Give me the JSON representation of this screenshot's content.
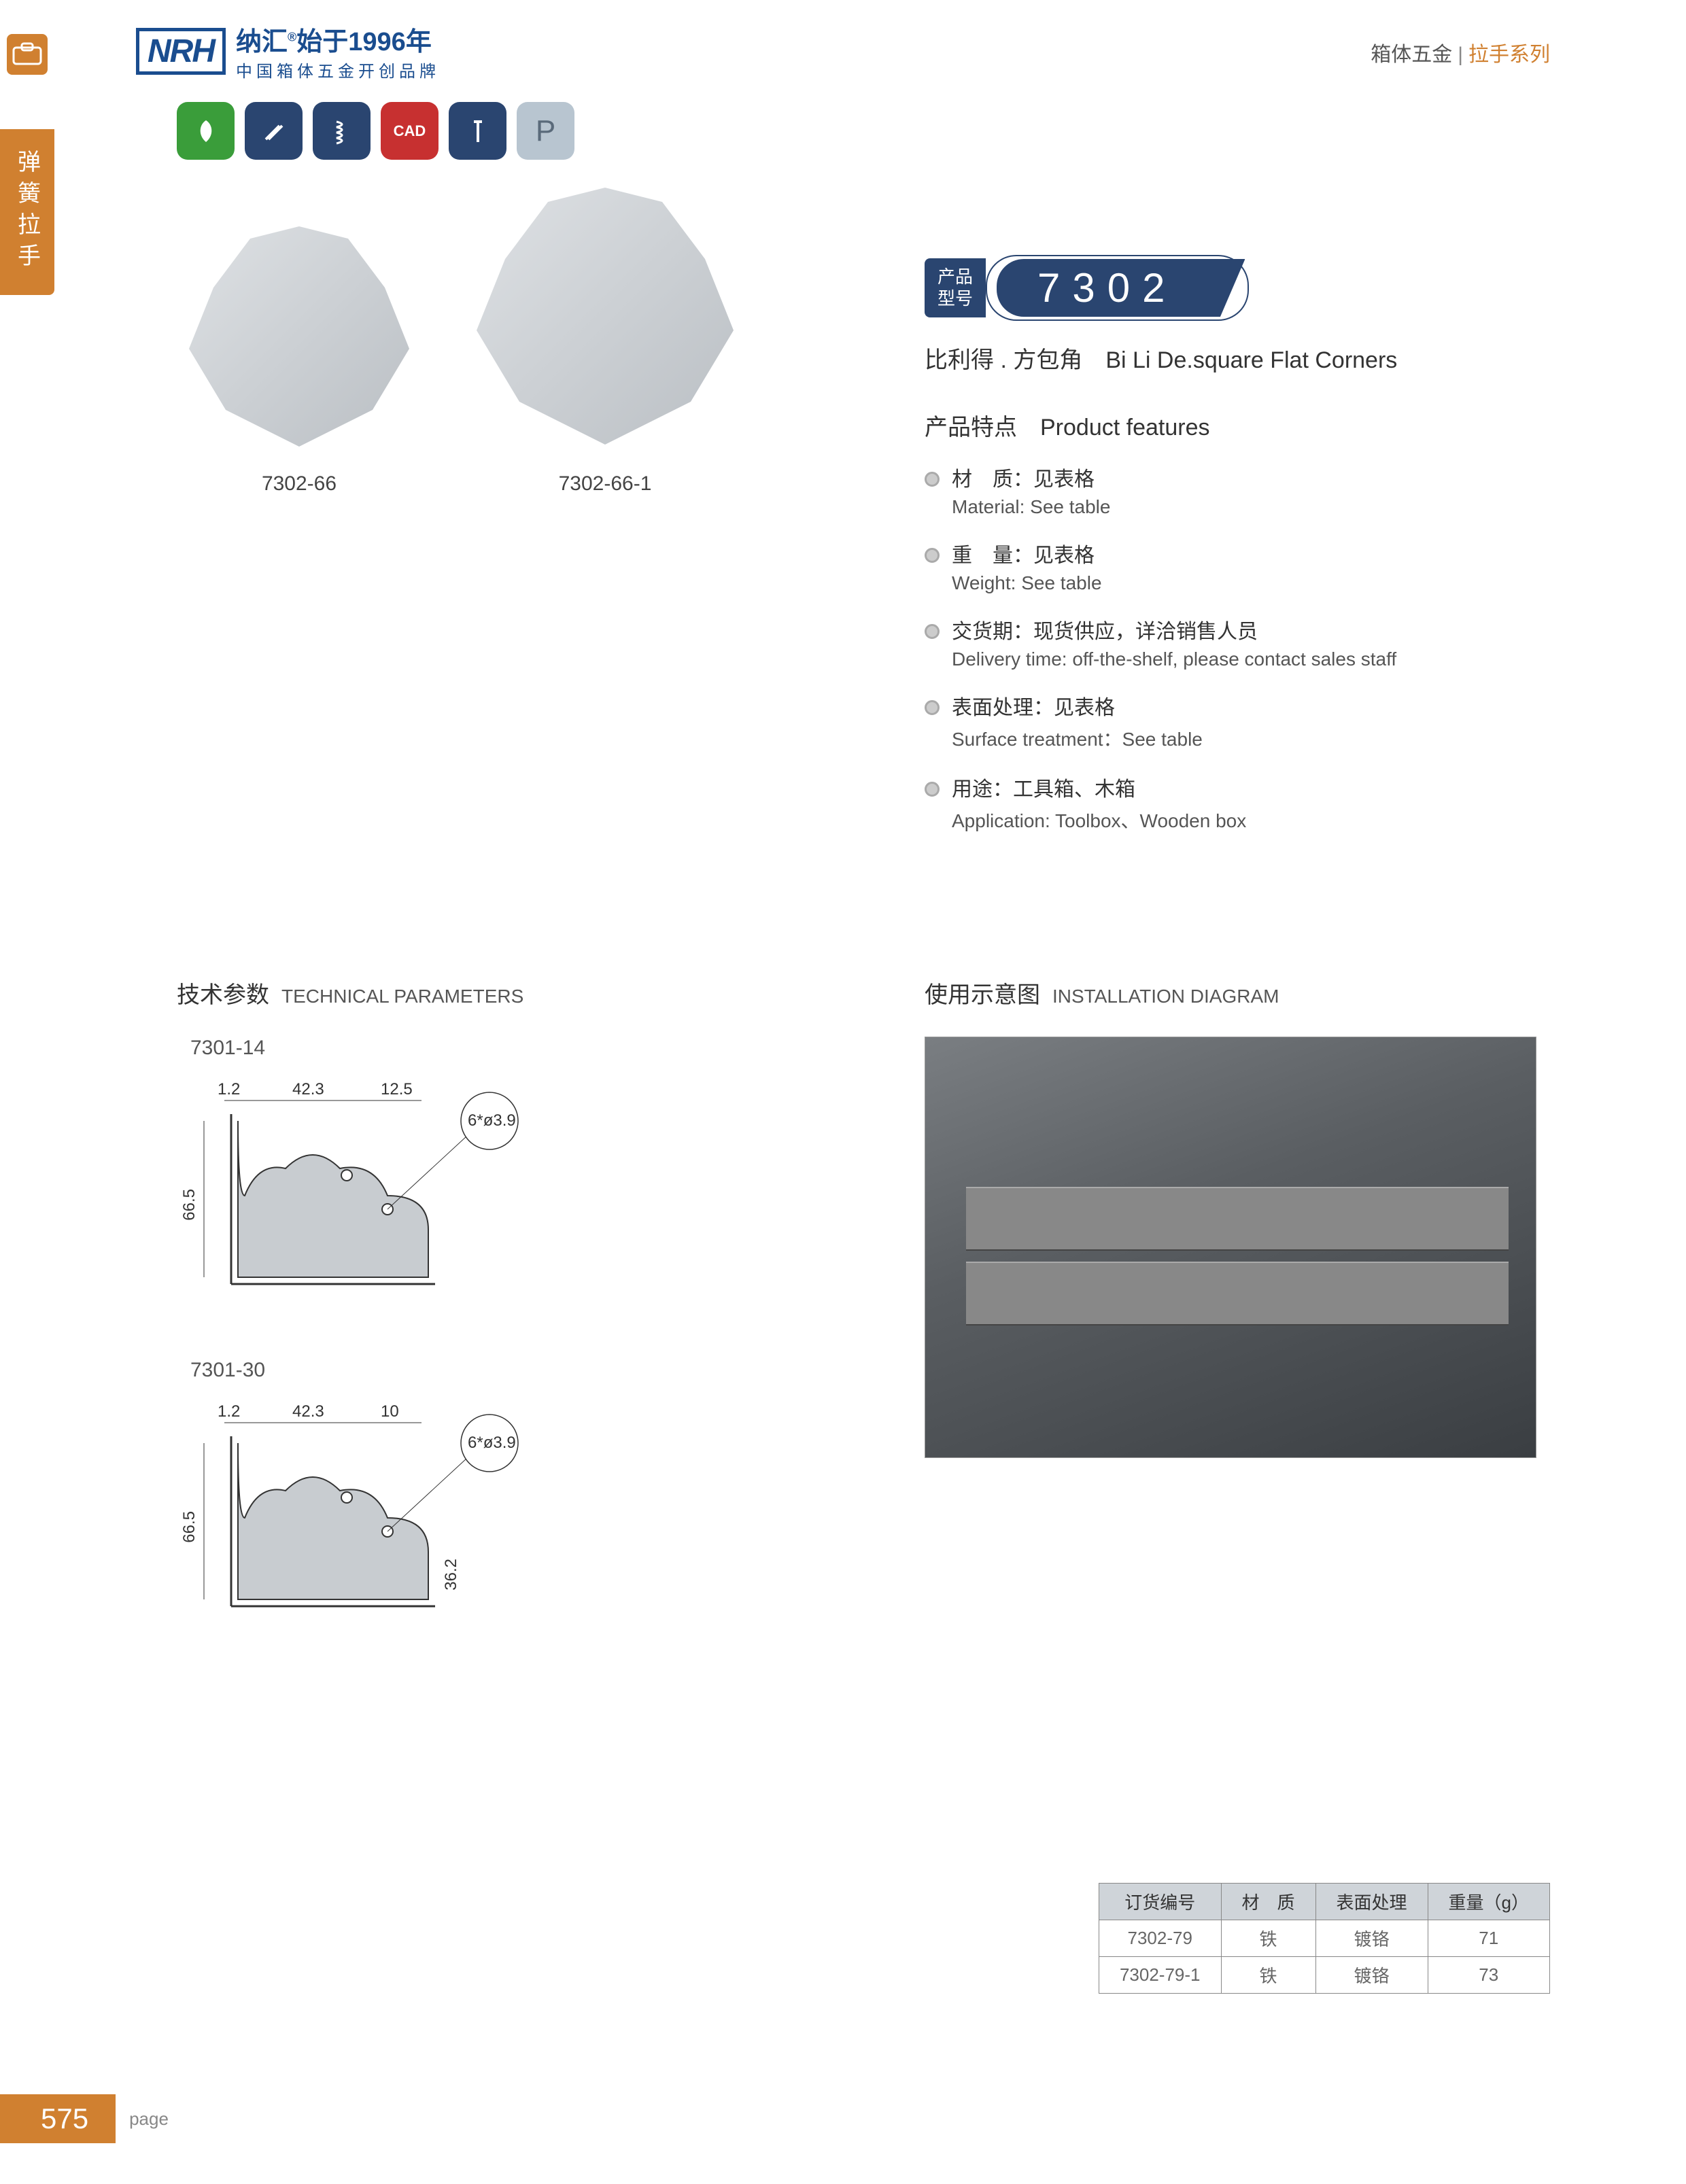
{
  "header": {
    "logo": "NRH",
    "brand_cn_top": "纳汇",
    "brand_cn_year": "始于1996年",
    "brand_cn_bot": "中国箱体五金开创品牌",
    "right_cat1": "箱体五金",
    "right_cat2": "拉手系列"
  },
  "side_tab": "弹簧拉手",
  "icon_row": {
    "colors": [
      "#3a9d3a",
      "#2a4570",
      "#2a4570",
      "#c73030",
      "#2a4570",
      "#b8c5d0"
    ]
  },
  "products": [
    {
      "label": "7302-66"
    },
    {
      "label": "7302-66-1"
    }
  ],
  "model": {
    "left_line1": "产品",
    "left_line2": "型号",
    "number": "7302"
  },
  "subtitle": "比利得 . 方包角　Bi Li De.square Flat Corners",
  "features_title_cn": "产品特点",
  "features_title_en": "Product features",
  "features": [
    {
      "cn": "材　质：见表格",
      "en": "Material: See table"
    },
    {
      "cn": "重　量：见表格",
      "en": "Weight: See table"
    },
    {
      "cn": "交货期：现货供应，详洽销售人员",
      "en": "Delivery time: off-the-shelf, please contact sales staff"
    },
    {
      "cn": "表面处理：见表格",
      "en": "Surface treatment：See table"
    },
    {
      "cn": "用途：工具箱、木箱",
      "en": "Application:  Toolbox、Wooden box"
    }
  ],
  "tech_title_cn": "技术参数",
  "tech_title_en": "TECHNICAL PARAMETERS",
  "install_title_cn": "使用示意图",
  "install_title_en": "INSTALLATION DIAGRAM",
  "diagrams": [
    {
      "label": "7301-14",
      "dims": {
        "d1": "1.2",
        "d2": "42.3",
        "d3": "12.5",
        "hole": "6*ø3.9",
        "h": "66.5"
      }
    },
    {
      "label": "7301-30",
      "dims": {
        "d1": "1.2",
        "d2": "42.3",
        "d3": "10",
        "hole": "6*ø3.9",
        "h": "66.5",
        "h2": "36.2"
      }
    }
  ],
  "spec_table": {
    "headers": [
      "订货编号",
      "材　质",
      "表面处理",
      "重量（g）"
    ],
    "rows": [
      [
        "7302-79",
        "铁",
        "镀铬",
        "71"
      ],
      [
        "7302-79-1",
        "铁",
        "镀铬",
        "73"
      ]
    ]
  },
  "page_number": "575",
  "page_label": "page"
}
